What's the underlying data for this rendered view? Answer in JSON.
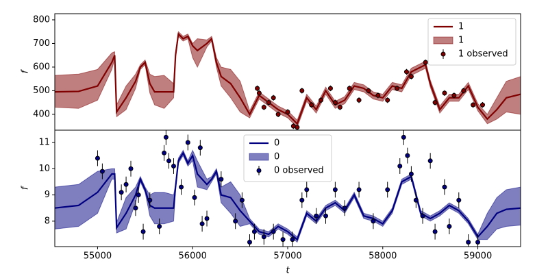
{
  "chart_data": [
    {
      "type": "line",
      "ylabel": "f",
      "legend": "upper right",
      "xlim": [
        54550,
        59450
      ],
      "ylim": [
        333,
        826
      ],
      "yticks": [
        400,
        500,
        600,
        700,
        800
      ],
      "x": [
        54550,
        54800,
        55000,
        55150,
        55180,
        55200,
        55300,
        55400,
        55450,
        55500,
        55550,
        55600,
        55700,
        55800,
        55820,
        55850,
        55900,
        55950,
        56000,
        56050,
        56150,
        56200,
        56250,
        56300,
        56400,
        56500,
        56600,
        56700,
        56800,
        56900,
        57000,
        57100,
        57200,
        57300,
        57400,
        57500,
        57600,
        57700,
        57800,
        57900,
        58000,
        58100,
        58200,
        58300,
        58400,
        58450,
        58500,
        58600,
        58700,
        58800,
        58900,
        59000,
        59100,
        59200,
        59300,
        59450
      ],
      "series": [
        {
          "name": "1",
          "kind": "line",
          "color": "#800000",
          "values": [
            495,
            497,
            520,
            620,
            650,
            410,
            470,
            540,
            600,
            620,
            530,
            495,
            495,
            495,
            650,
            740,
            720,
            730,
            690,
            670,
            700,
            720,
            620,
            560,
            530,
            470,
            400,
            480,
            450,
            420,
            400,
            360,
            470,
            420,
            500,
            440,
            460,
            520,
            510,
            480,
            470,
            520,
            510,
            580,
            600,
            610,
            530,
            420,
            470,
            470,
            520,
            430,
            380,
            420,
            470,
            485
          ]
        },
        {
          "name": "1",
          "kind": "band",
          "color": "#800000",
          "upper": [
            565,
            570,
            590,
            660,
            665,
            440,
            520,
            570,
            610,
            630,
            570,
            560,
            565,
            530,
            660,
            750,
            730,
            740,
            700,
            720,
            715,
            730,
            640,
            600,
            590,
            540,
            415,
            495,
            465,
            435,
            415,
            375,
            485,
            435,
            515,
            455,
            475,
            535,
            525,
            495,
            485,
            535,
            525,
            595,
            615,
            625,
            545,
            435,
            485,
            485,
            535,
            445,
            400,
            470,
            540,
            560
          ],
          "lower": [
            430,
            425,
            460,
            590,
            635,
            390,
            420,
            510,
            590,
            610,
            490,
            440,
            425,
            470,
            640,
            730,
            710,
            720,
            640,
            600,
            685,
            710,
            600,
            520,
            470,
            410,
            385,
            465,
            435,
            405,
            385,
            345,
            455,
            405,
            485,
            425,
            445,
            505,
            495,
            465,
            455,
            505,
            495,
            565,
            585,
            595,
            515,
            405,
            455,
            455,
            505,
            415,
            360,
            380,
            410,
            400
          ]
        },
        {
          "name": "1 observed",
          "kind": "errorbar",
          "color": "#800000",
          "x": [
            56680,
            56700,
            56750,
            56800,
            56850,
            56900,
            57000,
            57060,
            57100,
            57150,
            57250,
            57350,
            57450,
            57500,
            57550,
            57650,
            57750,
            57850,
            57950,
            58050,
            58150,
            58250,
            58300,
            58450,
            58550,
            58650,
            58750,
            58850,
            58950,
            59050
          ],
          "values": [
            510,
            490,
            430,
            450,
            470,
            400,
            410,
            350,
            345,
            500,
            440,
            460,
            510,
            450,
            430,
            510,
            460,
            500,
            480,
            460,
            510,
            580,
            560,
            620,
            450,
            490,
            480,
            500,
            440,
            440
          ],
          "errors": [
            12,
            12,
            12,
            12,
            12,
            12,
            12,
            12,
            12,
            12,
            12,
            12,
            12,
            12,
            12,
            12,
            12,
            12,
            12,
            12,
            12,
            12,
            12,
            12,
            12,
            12,
            12,
            12,
            12,
            12
          ]
        }
      ]
    },
    {
      "type": "line",
      "ylabel": "f",
      "xlabel": "t",
      "legend": "upper center",
      "xlim": [
        54550,
        59450
      ],
      "ylim": [
        7.03,
        11.47
      ],
      "yticks": [
        8,
        9,
        10,
        11
      ],
      "xticks": [
        55000,
        56000,
        57000,
        58000,
        59000
      ],
      "x": [
        54550,
        54800,
        55000,
        55150,
        55180,
        55200,
        55300,
        55400,
        55450,
        55500,
        55550,
        55600,
        55700,
        55800,
        55820,
        55850,
        55900,
        55950,
        56000,
        56050,
        56150,
        56200,
        56250,
        56300,
        56400,
        56500,
        56600,
        56700,
        56800,
        56900,
        57000,
        57100,
        57200,
        57300,
        57400,
        57500,
        57600,
        57700,
        57800,
        57900,
        58000,
        58100,
        58200,
        58300,
        58400,
        58450,
        58500,
        58600,
        58700,
        58800,
        58900,
        59000,
        59100,
        59200,
        59300,
        59450
      ],
      "series": [
        {
          "name": "0",
          "kind": "line",
          "color": "#000080",
          "values": [
            8.5,
            8.6,
            9.1,
            9.8,
            9.8,
            7.75,
            8.3,
            9.0,
            9.6,
            9.2,
            8.6,
            8.5,
            8.5,
            8.5,
            9.3,
            10.3,
            10.6,
            10.2,
            10.5,
            9.8,
            9.4,
            9.6,
            9.9,
            9.0,
            8.9,
            8.4,
            8.0,
            7.6,
            7.5,
            7.8,
            7.6,
            7.3,
            8.3,
            8.0,
            8.5,
            8.7,
            8.4,
            9.0,
            8.2,
            8.1,
            7.9,
            8.4,
            9.5,
            9.7,
            8.3,
            8.2,
            8.1,
            8.3,
            8.6,
            8.4,
            8.0,
            7.4,
            7.8,
            8.3,
            8.45,
            8.5
          ]
        },
        {
          "name": "0",
          "kind": "band",
          "color": "#000080",
          "upper": [
            9.3,
            9.4,
            9.9,
            10.0,
            10.0,
            7.95,
            8.9,
            9.3,
            9.7,
            9.3,
            9.0,
            9.1,
            9.1,
            9.0,
            9.4,
            10.4,
            10.7,
            10.3,
            10.7,
            10.3,
            9.6,
            9.7,
            10.0,
            9.3,
            9.5,
            9.0,
            8.1,
            7.7,
            7.6,
            7.9,
            7.7,
            7.4,
            8.4,
            8.1,
            8.6,
            8.8,
            8.5,
            9.1,
            8.3,
            8.2,
            8.0,
            8.5,
            9.6,
            9.8,
            8.4,
            8.3,
            8.2,
            8.4,
            8.7,
            8.5,
            8.1,
            7.5,
            8.3,
            8.9,
            9.2,
            9.3
          ],
          "lower": [
            7.7,
            7.8,
            8.3,
            9.6,
            9.6,
            7.55,
            7.7,
            8.7,
            9.5,
            9.1,
            8.2,
            7.9,
            7.9,
            8.0,
            9.2,
            10.2,
            10.5,
            10.1,
            10.3,
            9.3,
            9.2,
            9.5,
            9.8,
            8.7,
            8.3,
            7.8,
            7.9,
            7.5,
            7.4,
            7.7,
            7.5,
            7.2,
            8.2,
            7.9,
            8.4,
            8.6,
            8.3,
            8.9,
            8.1,
            8.0,
            7.8,
            8.3,
            9.4,
            9.6,
            8.2,
            8.1,
            8.0,
            8.2,
            8.5,
            8.3,
            7.9,
            7.3,
            7.3,
            7.7,
            7.8,
            7.85
          ]
        },
        {
          "name": "0 observed",
          "kind": "errorbar",
          "color": "#000080",
          "x": [
            55000,
            55050,
            55250,
            55300,
            55350,
            55400,
            55430,
            55480,
            55550,
            55650,
            55700,
            55720,
            55750,
            55800,
            55880,
            55950,
            56020,
            56080,
            56100,
            56150,
            56300,
            56450,
            56520,
            56600,
            56650,
            56750,
            56850,
            56950,
            57050,
            57150,
            57200,
            57300,
            57400,
            57500,
            57600,
            57750,
            57900,
            58050,
            58180,
            58220,
            58260,
            58300,
            58350,
            58420,
            58500,
            58550,
            58650,
            58700,
            58800,
            58900,
            59000
          ],
          "values": [
            10.4,
            9.9,
            9.1,
            9.4,
            10.0,
            8.5,
            9.0,
            7.6,
            8.8,
            7.8,
            10.6,
            11.2,
            10.3,
            10.1,
            9.3,
            11.0,
            8.9,
            10.8,
            7.9,
            8.1,
            9.6,
            8.0,
            8.8,
            7.2,
            7.6,
            7.4,
            7.6,
            7.3,
            7.3,
            8.8,
            9.2,
            8.2,
            8.2,
            9.2,
            8.5,
            9.2,
            8.0,
            9.2,
            10.1,
            11.2,
            10.5,
            9.8,
            8.8,
            8.2,
            10.3,
            7.6,
            9.3,
            7.8,
            8.8,
            7.2,
            7.2
          ],
          "errors": [
            0.3,
            0.3,
            0.3,
            0.3,
            0.3,
            0.3,
            0.3,
            0.3,
            0.3,
            0.3,
            0.3,
            0.3,
            0.3,
            0.3,
            0.3,
            0.3,
            0.3,
            0.3,
            0.3,
            0.3,
            0.3,
            0.3,
            0.3,
            0.3,
            0.3,
            0.3,
            0.3,
            0.3,
            0.3,
            0.3,
            0.3,
            0.3,
            0.3,
            0.3,
            0.3,
            0.3,
            0.3,
            0.3,
            0.3,
            0.3,
            0.3,
            0.3,
            0.3,
            0.3,
            0.3,
            0.3,
            0.3,
            0.3,
            0.3,
            0.3,
            0.3
          ]
        }
      ]
    }
  ]
}
